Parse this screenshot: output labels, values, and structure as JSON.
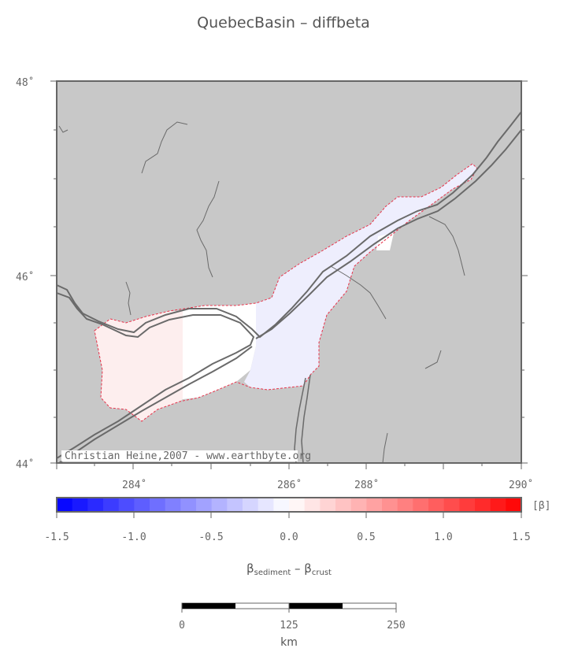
{
  "title": "QuebecBasin – diffbeta",
  "map": {
    "lat_labels": [
      "48˚",
      "46˚",
      "44˚"
    ],
    "lon_labels": [
      "284˚",
      "286˚",
      "288˚",
      "290˚"
    ],
    "credit": "Christian Heine,2007 - www.earthbyte.org",
    "land_color": "#c8c8c8",
    "neg_fill_color": "#eeeefd",
    "pos_fill_color": "#fdeeee",
    "boundary_color": "#e8334b"
  },
  "colorbar": {
    "unit": "[β]",
    "tick_labels": [
      "-1.5",
      "-1.0",
      "-0.5",
      "0.0",
      "0.5",
      "1.0",
      "1.5"
    ],
    "label_main": "β",
    "label_sub1": "sediment",
    "label_dash": " – ",
    "label_main2": "β",
    "label_sub2": "crust"
  },
  "scalebar": {
    "labels": [
      "0",
      "125",
      "250"
    ],
    "unit": "km"
  }
}
